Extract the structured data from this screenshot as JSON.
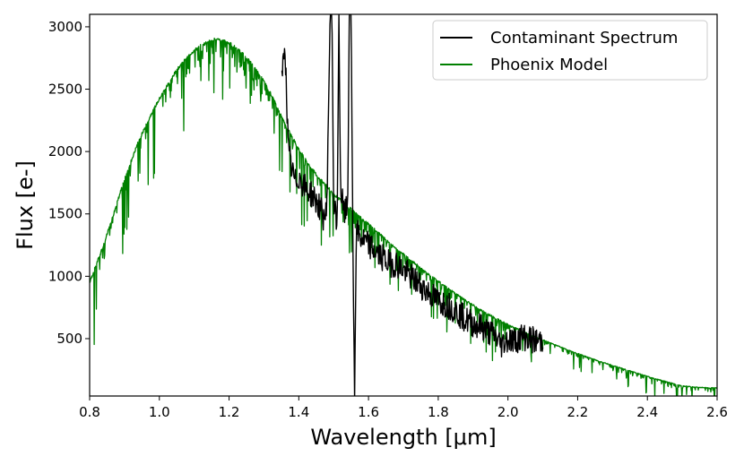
{
  "chart_data": {
    "type": "line",
    "title": "",
    "xlabel": "Wavelength [μm]",
    "ylabel": "Flux [e-]",
    "xlim": [
      0.8,
      2.6
    ],
    "ylim": [
      40,
      3100
    ],
    "x_ticks": [
      0.8,
      1.0,
      1.2,
      1.4,
      1.6,
      1.8,
      2.0,
      2.2,
      2.4,
      2.6
    ],
    "x_tick_labels": [
      "0.8",
      "1.0",
      "1.2",
      "1.4",
      "1.6",
      "1.8",
      "2.0",
      "2.2",
      "2.4",
      "2.6"
    ],
    "y_ticks": [
      500,
      1000,
      1500,
      2000,
      2500,
      3000
    ],
    "y_tick_labels": [
      "500",
      "1000",
      "1500",
      "2000",
      "2500",
      "3000"
    ],
    "grid": false,
    "legend_position": "top-right",
    "legend": [
      "Contaminant Spectrum",
      "Phoenix Model"
    ],
    "series": [
      {
        "name": "Phoenix Model",
        "color": "#008000",
        "x": [
          0.8,
          0.82,
          0.84,
          0.86,
          0.88,
          0.9,
          0.92,
          0.94,
          0.96,
          0.98,
          1.0,
          1.02,
          1.04,
          1.06,
          1.08,
          1.1,
          1.12,
          1.14,
          1.16,
          1.18,
          1.2,
          1.22,
          1.24,
          1.26,
          1.28,
          1.3,
          1.32,
          1.34,
          1.36,
          1.38,
          1.4,
          1.42,
          1.44,
          1.46,
          1.48,
          1.5,
          1.52,
          1.54,
          1.56,
          1.58,
          1.6,
          1.62,
          1.64,
          1.66,
          1.68,
          1.7,
          1.72,
          1.74,
          1.76,
          1.78,
          1.8,
          1.82,
          1.84,
          1.86,
          1.88,
          1.9,
          1.92,
          1.94,
          1.96,
          1.98,
          2.0,
          2.02,
          2.04,
          2.06,
          2.08,
          2.1,
          2.14,
          2.18,
          2.22,
          2.26,
          2.3,
          2.34,
          2.38,
          2.42,
          2.46,
          2.5,
          2.54,
          2.58,
          2.6
        ],
        "values": [
          950,
          1100,
          1250,
          1420,
          1600,
          1780,
          1930,
          2080,
          2200,
          2320,
          2420,
          2520,
          2610,
          2690,
          2760,
          2810,
          2850,
          2880,
          2900,
          2890,
          2870,
          2830,
          2780,
          2720,
          2650,
          2560,
          2460,
          2340,
          2220,
          2120,
          2020,
          1930,
          1850,
          1780,
          1720,
          1660,
          1610,
          1560,
          1510,
          1460,
          1420,
          1370,
          1320,
          1270,
          1220,
          1180,
          1130,
          1090,
          1040,
          1000,
          960,
          920,
          880,
          840,
          800,
          770,
          730,
          700,
          670,
          640,
          610,
          585,
          560,
          535,
          510,
          490,
          445,
          400,
          360,
          320,
          285,
          250,
          215,
          180,
          150,
          120,
          110,
          105,
          105
        ]
      },
      {
        "name": "Contaminant Spectrum",
        "color": "#000000",
        "x": [
          1.35,
          1.355,
          1.36,
          1.365,
          1.37,
          1.38,
          1.39,
          1.4,
          1.42,
          1.44,
          1.46,
          1.47,
          1.48,
          1.49,
          1.495,
          1.5,
          1.51,
          1.515,
          1.52,
          1.53,
          1.54,
          1.545,
          1.55,
          1.555,
          1.56,
          1.565,
          1.57,
          1.58,
          1.6,
          1.62,
          1.64,
          1.66,
          1.68,
          1.7,
          1.72,
          1.74,
          1.76,
          1.78,
          1.8,
          1.82,
          1.84,
          1.86,
          1.88,
          1.9,
          1.92,
          1.94,
          1.96,
          1.98,
          2.0,
          2.02,
          2.04,
          2.06,
          2.08,
          2.1
        ],
        "values": [
          2550,
          2700,
          2900,
          2450,
          2000,
          1850,
          1750,
          1800,
          1700,
          1650,
          1550,
          1480,
          1500,
          3100,
          3100,
          1600,
          1400,
          3100,
          1700,
          1500,
          1550,
          3100,
          3100,
          1400,
          0,
          1300,
          1350,
          1300,
          1250,
          1200,
          1150,
          1100,
          1100,
          1050,
          1000,
          950,
          900,
          850,
          800,
          780,
          750,
          700,
          650,
          620,
          600,
          560,
          530,
          450,
          500,
          480,
          520,
          500,
          480,
          490
        ]
      }
    ]
  }
}
